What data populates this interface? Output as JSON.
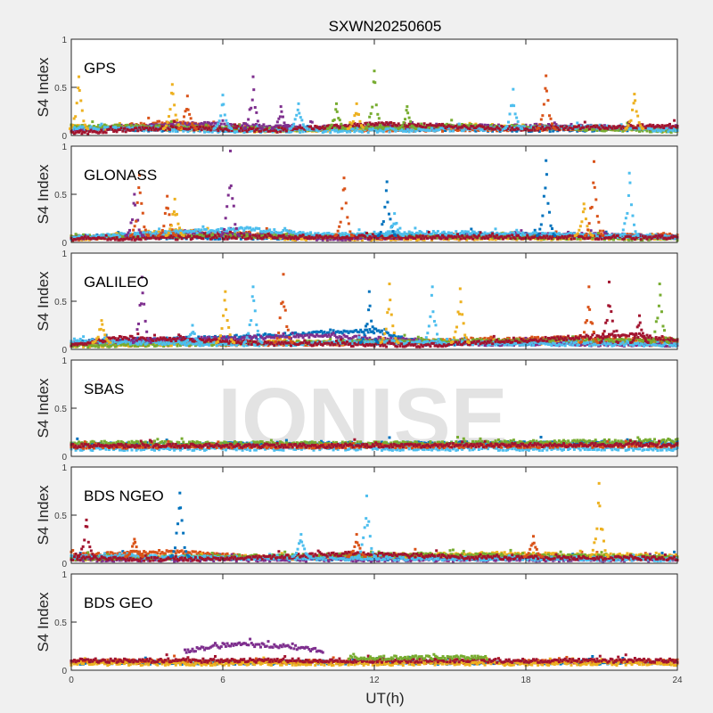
{
  "chart_data": {
    "type": "scatter",
    "title": "SXWN20250605",
    "xlabel": "UT(h)",
    "ylabel": "S4 Index",
    "xlim": [
      0,
      24
    ],
    "ylim": [
      0,
      1
    ],
    "xticks": [
      "0",
      "6",
      "12",
      "18",
      "24"
    ],
    "yticks": [
      "0",
      "0.5",
      "1"
    ],
    "watermark": "IONISE",
    "colors": [
      "#0072BD",
      "#D95319",
      "#EDB120",
      "#7E2F8E",
      "#77AC30",
      "#4DBEEE",
      "#A2142F"
    ],
    "panels": [
      {
        "name": "GPS",
        "baselines": [
          {
            "color": 0,
            "knots": [
              [
                0,
                0.07
              ],
              [
                6,
                0.06
              ],
              [
                12,
                0.07
              ],
              [
                18,
                0.06
              ],
              [
                24,
                0.07
              ]
            ]
          },
          {
            "color": 1,
            "knots": [
              [
                0,
                0.05
              ],
              [
                4,
                0.14
              ],
              [
                6,
                0.08
              ],
              [
                13,
                0.06
              ],
              [
                24,
                0.08
              ]
            ]
          },
          {
            "color": 2,
            "knots": [
              [
                0,
                0.09
              ],
              [
                8,
                0.05
              ],
              [
                16,
                0.1
              ],
              [
                24,
                0.06
              ]
            ]
          },
          {
            "color": 3,
            "knots": [
              [
                0,
                0.06
              ],
              [
                5,
                0.12
              ],
              [
                10,
                0.08
              ],
              [
                19,
                0.1
              ],
              [
                24,
                0.07
              ]
            ]
          },
          {
            "color": 4,
            "knots": [
              [
                0,
                0.1
              ],
              [
                9,
                0.06
              ],
              [
                15,
                0.1
              ],
              [
                24,
                0.05
              ]
            ]
          },
          {
            "color": 5,
            "knots": [
              [
                0,
                0.08
              ],
              [
                6,
                0.05
              ],
              [
                12,
                0.05
              ],
              [
                21,
                0.09
              ],
              [
                24,
                0.05
              ]
            ]
          },
          {
            "color": 6,
            "knots": [
              [
                0,
                0.03
              ],
              [
                4,
                0.08
              ],
              [
                8,
                0.05
              ],
              [
                12,
                0.12
              ],
              [
                18,
                0.07
              ],
              [
                24,
                0.1
              ]
            ]
          }
        ],
        "spikes": [
          {
            "color": 2,
            "x": 0.3,
            "y": 0.61
          },
          {
            "color": 2,
            "x": 4.0,
            "y": 0.53
          },
          {
            "color": 1,
            "x": 4.6,
            "y": 0.41
          },
          {
            "color": 5,
            "x": 6.0,
            "y": 0.42
          },
          {
            "color": 3,
            "x": 7.2,
            "y": 0.61
          },
          {
            "color": 3,
            "x": 8.3,
            "y": 0.3
          },
          {
            "color": 5,
            "x": 9.0,
            "y": 0.33
          },
          {
            "color": 4,
            "x": 10.5,
            "y": 0.33
          },
          {
            "color": 2,
            "x": 11.3,
            "y": 0.33
          },
          {
            "color": 4,
            "x": 12.0,
            "y": 0.67
          },
          {
            "color": 4,
            "x": 13.3,
            "y": 0.3
          },
          {
            "color": 5,
            "x": 17.5,
            "y": 0.48
          },
          {
            "color": 1,
            "x": 18.8,
            "y": 0.62
          },
          {
            "color": 2,
            "x": 22.3,
            "y": 0.43
          }
        ]
      },
      {
        "name": "GLONASS",
        "baselines": [
          {
            "color": 0,
            "knots": [
              [
                0,
                0.06
              ],
              [
                8,
                0.05
              ],
              [
                16,
                0.08
              ],
              [
                24,
                0.06
              ]
            ]
          },
          {
            "color": 1,
            "knots": [
              [
                0,
                0.04
              ],
              [
                6,
                0.1
              ],
              [
                12,
                0.05
              ],
              [
                24,
                0.07
              ]
            ]
          },
          {
            "color": 2,
            "knots": [
              [
                0,
                0.03
              ],
              [
                4,
                0.12
              ],
              [
                9,
                0.04
              ],
              [
                24,
                0.05
              ]
            ]
          },
          {
            "color": 3,
            "knots": [
              [
                0,
                0.05
              ],
              [
                5,
                0.1
              ],
              [
                10,
                0.04
              ],
              [
                20,
                0.08
              ],
              [
                24,
                0.05
              ]
            ]
          },
          {
            "color": 4,
            "knots": [
              [
                0,
                0.06
              ],
              [
                12,
                0.07
              ],
              [
                24,
                0.04
              ]
            ]
          },
          {
            "color": 5,
            "knots": [
              [
                0,
                0.05
              ],
              [
                7,
                0.14
              ],
              [
                10,
                0.08
              ],
              [
                14,
                0.1
              ],
              [
                24,
                0.06
              ]
            ]
          },
          {
            "color": 6,
            "knots": [
              [
                0,
                0.04
              ],
              [
                10,
                0.06
              ],
              [
                24,
                0.05
              ]
            ]
          }
        ],
        "spikes": [
          {
            "color": 3,
            "x": 2.5,
            "y": 0.5
          },
          {
            "color": 1,
            "x": 2.7,
            "y": 0.7
          },
          {
            "color": 1,
            "x": 3.8,
            "y": 0.48
          },
          {
            "color": 2,
            "x": 4.1,
            "y": 0.45
          },
          {
            "color": 3,
            "x": 6.3,
            "y": 0.95
          },
          {
            "color": 1,
            "x": 10.8,
            "y": 0.67
          },
          {
            "color": 0,
            "x": 12.5,
            "y": 0.63
          },
          {
            "color": 5,
            "x": 12.8,
            "y": 0.3
          },
          {
            "color": 0,
            "x": 18.8,
            "y": 0.85
          },
          {
            "color": 2,
            "x": 20.3,
            "y": 0.4
          },
          {
            "color": 1,
            "x": 20.7,
            "y": 0.84
          },
          {
            "color": 5,
            "x": 22.1,
            "y": 0.72
          }
        ]
      },
      {
        "name": "GALILEO",
        "baselines": [
          {
            "color": 0,
            "knots": [
              [
                0,
                0.07
              ],
              [
                6,
                0.12
              ],
              [
                12,
                0.2
              ],
              [
                14,
                0.06
              ],
              [
                24,
                0.07
              ]
            ]
          },
          {
            "color": 1,
            "knots": [
              [
                0,
                0.05
              ],
              [
                10,
                0.06
              ],
              [
                20,
                0.12
              ],
              [
                24,
                0.08
              ]
            ]
          },
          {
            "color": 2,
            "knots": [
              [
                0,
                0.04
              ],
              [
                8,
                0.07
              ],
              [
                16,
                0.08
              ],
              [
                24,
                0.05
              ]
            ]
          },
          {
            "color": 3,
            "knots": [
              [
                0,
                0.06
              ],
              [
                4,
                0.1
              ],
              [
                10,
                0.14
              ],
              [
                16,
                0.06
              ],
              [
                24,
                0.05
              ]
            ]
          },
          {
            "color": 4,
            "knots": [
              [
                0,
                0.04
              ],
              [
                12,
                0.08
              ],
              [
                24,
                0.1
              ]
            ]
          },
          {
            "color": 5,
            "knots": [
              [
                0,
                0.09
              ],
              [
                6,
                0.05
              ],
              [
                12,
                0.07
              ],
              [
                24,
                0.05
              ]
            ]
          },
          {
            "color": 6,
            "knots": [
              [
                0,
                0.05
              ],
              [
                2,
                0.12
              ],
              [
                8,
                0.06
              ],
              [
                14,
                0.04
              ],
              [
                22,
                0.15
              ],
              [
                24,
                0.1
              ]
            ]
          }
        ],
        "spikes": [
          {
            "color": 2,
            "x": 1.2,
            "y": 0.3
          },
          {
            "color": 3,
            "x": 2.8,
            "y": 0.75
          },
          {
            "color": 5,
            "x": 4.8,
            "y": 0.25
          },
          {
            "color": 2,
            "x": 6.1,
            "y": 0.6
          },
          {
            "color": 5,
            "x": 7.2,
            "y": 0.65
          },
          {
            "color": 1,
            "x": 8.4,
            "y": 0.78
          },
          {
            "color": 0,
            "x": 11.8,
            "y": 0.6
          },
          {
            "color": 2,
            "x": 12.6,
            "y": 0.68
          },
          {
            "color": 5,
            "x": 14.3,
            "y": 0.65
          },
          {
            "color": 2,
            "x": 15.4,
            "y": 0.63
          },
          {
            "color": 1,
            "x": 20.5,
            "y": 0.65
          },
          {
            "color": 6,
            "x": 21.3,
            "y": 0.7
          },
          {
            "color": 6,
            "x": 22.5,
            "y": 0.35
          },
          {
            "color": 4,
            "x": 23.3,
            "y": 0.68
          }
        ]
      },
      {
        "name": "SBAS",
        "baselines": [
          {
            "color": 0,
            "knots": [
              [
                0,
                0.12
              ],
              [
                12,
                0.13
              ],
              [
                24,
                0.14
              ]
            ]
          },
          {
            "color": 4,
            "knots": [
              [
                0,
                0.14
              ],
              [
                12,
                0.13
              ],
              [
                24,
                0.16
              ]
            ]
          },
          {
            "color": 5,
            "knots": [
              [
                0,
                0.08
              ],
              [
                24,
                0.08
              ]
            ]
          },
          {
            "color": 1,
            "knots": [
              [
                0,
                0.1
              ],
              [
                24,
                0.11
              ]
            ]
          },
          {
            "color": 6,
            "knots": [
              [
                0,
                0.11
              ],
              [
                12,
                0.11
              ],
              [
                24,
                0.12
              ]
            ]
          }
        ],
        "spikes": []
      },
      {
        "name": "BDS NGEO",
        "baselines": [
          {
            "color": 0,
            "knots": [
              [
                0,
                0.06
              ],
              [
                12,
                0.05
              ],
              [
                24,
                0.06
              ]
            ]
          },
          {
            "color": 1,
            "knots": [
              [
                0,
                0.08
              ],
              [
                4,
                0.12
              ],
              [
                8,
                0.05
              ],
              [
                14,
                0.08
              ],
              [
                24,
                0.05
              ]
            ]
          },
          {
            "color": 2,
            "knots": [
              [
                0,
                0.05
              ],
              [
                12,
                0.06
              ],
              [
                16,
                0.1
              ],
              [
                24,
                0.07
              ]
            ]
          },
          {
            "color": 3,
            "knots": [
              [
                0,
                0.04
              ],
              [
                24,
                0.04
              ]
            ]
          },
          {
            "color": 4,
            "knots": [
              [
                0,
                0.05
              ],
              [
                14,
                0.09
              ],
              [
                24,
                0.06
              ]
            ]
          },
          {
            "color": 5,
            "knots": [
              [
                0,
                0.07
              ],
              [
                10,
                0.05
              ],
              [
                20,
                0.05
              ],
              [
                24,
                0.04
              ]
            ]
          },
          {
            "color": 6,
            "knots": [
              [
                0,
                0.05
              ],
              [
                6,
                0.04
              ],
              [
                11,
                0.1
              ],
              [
                16,
                0.06
              ],
              [
                24,
                0.05
              ]
            ]
          }
        ],
        "spikes": [
          {
            "color": 6,
            "x": 0.6,
            "y": 0.45
          },
          {
            "color": 1,
            "x": 2.5,
            "y": 0.25
          },
          {
            "color": 0,
            "x": 4.3,
            "y": 0.73
          },
          {
            "color": 5,
            "x": 9.1,
            "y": 0.3
          },
          {
            "color": 1,
            "x": 11.3,
            "y": 0.3
          },
          {
            "color": 5,
            "x": 11.7,
            "y": 0.7
          },
          {
            "color": 1,
            "x": 18.3,
            "y": 0.28
          },
          {
            "color": 2,
            "x": 20.9,
            "y": 0.83
          }
        ]
      },
      {
        "name": "BDS GEO",
        "baselines": [
          {
            "color": 0,
            "knots": [
              [
                0,
                0.08
              ],
              [
                24,
                0.08
              ]
            ]
          },
          {
            "color": 1,
            "knots": [
              [
                0,
                0.09
              ],
              [
                24,
                0.09
              ]
            ]
          },
          {
            "color": 2,
            "knots": [
              [
                0,
                0.07
              ],
              [
                24,
                0.07
              ]
            ]
          },
          {
            "color": 6,
            "knots": [
              [
                0,
                0.1
              ],
              [
                24,
                0.1
              ]
            ]
          },
          {
            "color": 3,
            "knots": [
              [
                4.5,
                0.2
              ],
              [
                6.5,
                0.27
              ],
              [
                8.5,
                0.25
              ],
              [
                10,
                0.2
              ]
            ]
          },
          {
            "color": 4,
            "knots": [
              [
                11,
                0.13
              ],
              [
                16.5,
                0.13
              ]
            ]
          }
        ],
        "spikes": []
      }
    ]
  }
}
